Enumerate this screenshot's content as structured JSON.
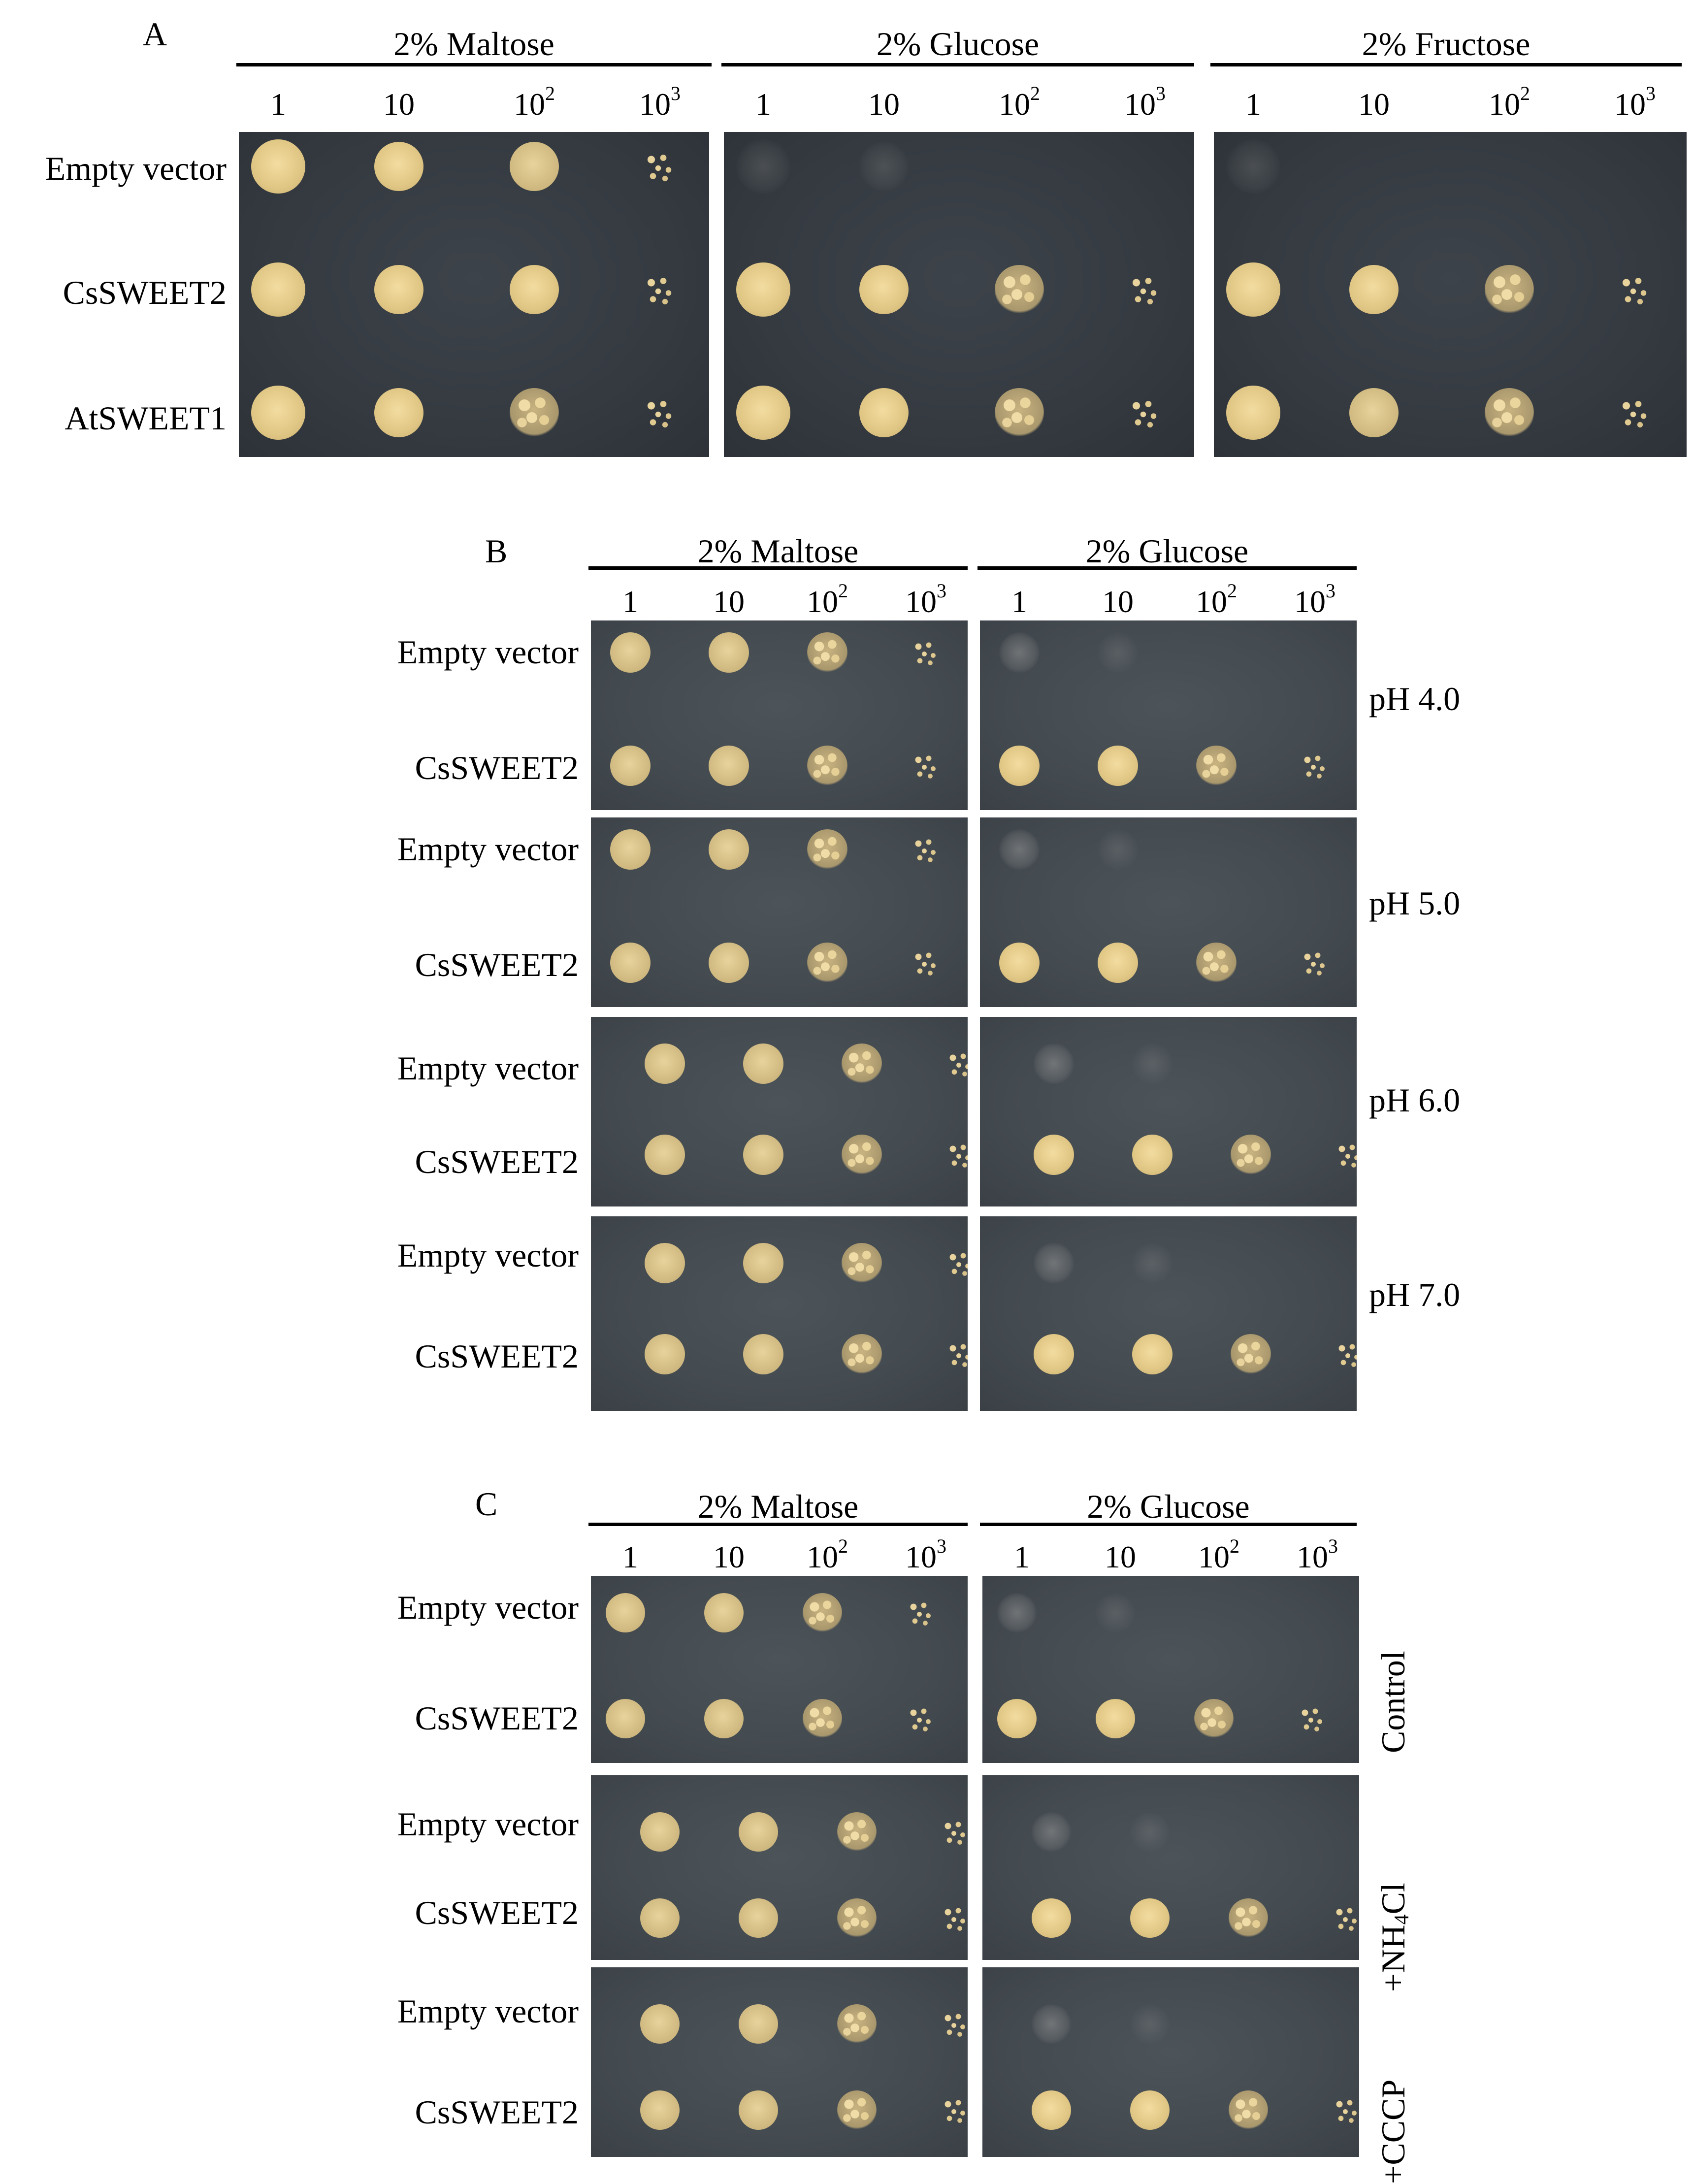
{
  "panels": [
    {
      "letter": "A",
      "media": [
        "2% Maltose",
        "2% Glucose",
        "2% Fructose"
      ],
      "dilutions": [
        "1",
        "10",
        "10",
        "10"
      ],
      "exponents": [
        "",
        "",
        "2",
        "3"
      ],
      "rows": [
        "Empty vector",
        "CsSWEET2",
        "AtSWEET1"
      ],
      "conditions": []
    },
    {
      "letter": "B",
      "media": [
        "2% Maltose",
        "2% Glucose"
      ],
      "dilutions": [
        "1",
        "10",
        "10",
        "10"
      ],
      "exponents": [
        "",
        "",
        "2",
        "3"
      ],
      "rows": [
        "Empty vector",
        "CsSWEET2"
      ],
      "conditions": [
        "pH 4.0",
        "pH 5.0",
        "pH 6.0",
        "pH 7.0"
      ]
    },
    {
      "letter": "C",
      "media": [
        "2% Maltose",
        "2% Glucose"
      ],
      "dilutions": [
        "1",
        "10",
        "10",
        "10"
      ],
      "exponents": [
        "",
        "",
        "2",
        "3"
      ],
      "rows": [
        "Empty vector",
        "CsSWEET2"
      ],
      "conditions": [
        "Control",
        "+NH",
        "+CCCP"
      ],
      "nh4": {
        "subscript": "4",
        "suffix": "Cl"
      }
    }
  ],
  "growth": {
    "A": {
      "2% Maltose": [
        [
          "full",
          "full",
          "med",
          "speck"
        ],
        [
          "full",
          "full",
          "full",
          "speck"
        ],
        [
          "full",
          "full",
          "grainy",
          "speck"
        ]
      ],
      "2% Glucose": [
        [
          "vfaint",
          "vfaint",
          "none",
          "none"
        ],
        [
          "full",
          "full",
          "grainy",
          "speck"
        ],
        [
          "full",
          "full",
          "grainy",
          "speck"
        ]
      ],
      "2% Fructose": [
        [
          "vfaint",
          "none",
          "none",
          "none"
        ],
        [
          "full",
          "full",
          "grainy",
          "speck"
        ],
        [
          "full",
          "med",
          "grainy",
          "speck"
        ]
      ]
    },
    "B": {
      "pH 4.0": {
        "2% Maltose": [
          [
            "med",
            "med",
            "grainy",
            "speck"
          ],
          [
            "med",
            "med",
            "grainy",
            "speck"
          ]
        ],
        "2% Glucose": [
          [
            "faint",
            "vfaint",
            "none",
            "none"
          ],
          [
            "full",
            "full",
            "grainy",
            "speck"
          ]
        ]
      },
      "pH 5.0": {
        "2% Maltose": [
          [
            "med",
            "med",
            "grainy",
            "speck"
          ],
          [
            "med",
            "med",
            "grainy",
            "speck"
          ]
        ],
        "2% Glucose": [
          [
            "faint",
            "vfaint",
            "none",
            "none"
          ],
          [
            "full",
            "full",
            "grainy",
            "speck"
          ]
        ]
      },
      "pH 6.0": {
        "2% Maltose": [
          [
            "med",
            "med",
            "grainy",
            "speck"
          ],
          [
            "med",
            "med",
            "grainy",
            "speck"
          ]
        ],
        "2% Glucose": [
          [
            "faint",
            "vfaint",
            "none",
            "none"
          ],
          [
            "full",
            "full",
            "grainy",
            "speck"
          ]
        ]
      },
      "pH 7.0": {
        "2% Maltose": [
          [
            "med",
            "med",
            "grainy",
            "speck"
          ],
          [
            "med",
            "med",
            "grainy",
            "speck"
          ]
        ],
        "2% Glucose": [
          [
            "faint",
            "vfaint",
            "none",
            "none"
          ],
          [
            "full",
            "full",
            "grainy",
            "speck"
          ]
        ]
      }
    },
    "C": {
      "Control": {
        "2% Maltose": [
          [
            "med",
            "med",
            "grainy",
            "speck"
          ],
          [
            "med",
            "med",
            "grainy",
            "speck"
          ]
        ],
        "2% Glucose": [
          [
            "faint",
            "vfaint",
            "none",
            "none"
          ],
          [
            "full",
            "full",
            "grainy",
            "speck"
          ]
        ]
      },
      "+NH4Cl": {
        "2% Maltose": [
          [
            "med",
            "med",
            "grainy",
            "speck"
          ],
          [
            "med",
            "med",
            "grainy",
            "speck"
          ]
        ],
        "2% Glucose": [
          [
            "faint",
            "vfaint",
            "none",
            "none"
          ],
          [
            "full",
            "full",
            "grainy",
            "speck"
          ]
        ]
      },
      "+CCCP": {
        "2% Maltose": [
          [
            "med",
            "med",
            "grainy",
            "speck"
          ],
          [
            "med",
            "med",
            "grainy",
            "speck"
          ]
        ],
        "2% Glucose": [
          [
            "faint",
            "vfaint",
            "none",
            "none"
          ],
          [
            "full",
            "full",
            "grainy",
            "speck"
          ]
        ]
      }
    }
  }
}
